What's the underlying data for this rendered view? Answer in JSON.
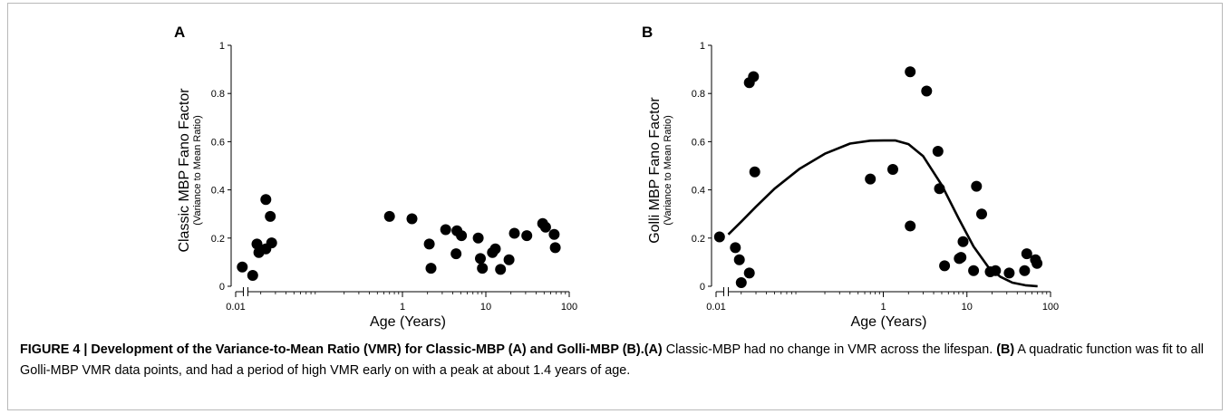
{
  "figure_caption": {
    "label": "FIGURE 4 | Development of the Variance-to-Mean Ratio (VMR) for Classic-MBP (A) and Golli-MBP (B).",
    "a_ref": "(A)",
    "a_text": " Classic-MBP had no change in VMR across the lifespan. ",
    "b_ref": "(B)",
    "b_text": " A quadratic function was fit to all Golli-MBP VMR data points, and had a period of high VMR early on with a peak at about 1.4 years of age."
  },
  "chart_data": [
    {
      "type": "scatter",
      "panel_label": "A",
      "xlabel": "Age (Years)",
      "ylabel": "Classic MBP Fano Factor",
      "ylabel_sub": "(Variance to Mean Ratio)",
      "xscale": "log",
      "xlim": [
        0.01,
        100
      ],
      "ylim": [
        0,
        1
      ],
      "xticks": [
        0.01,
        1,
        10,
        100
      ],
      "xtick_labels": [
        "0.01",
        "1",
        "10",
        "100"
      ],
      "yticks": [
        0,
        0.2,
        0.4,
        0.6,
        0.8,
        1
      ],
      "ytick_labels": [
        "0",
        "0.2",
        "0.4",
        "0.6",
        "0.8",
        "1"
      ],
      "grid": false,
      "points": [
        {
          "x": 0.012,
          "y": 0.08
        },
        {
          "x": 0.016,
          "y": 0.045
        },
        {
          "x": 0.018,
          "y": 0.175
        },
        {
          "x": 0.019,
          "y": 0.14
        },
        {
          "x": 0.023,
          "y": 0.36
        },
        {
          "x": 0.023,
          "y": 0.155
        },
        {
          "x": 0.026,
          "y": 0.29
        },
        {
          "x": 0.027,
          "y": 0.18
        },
        {
          "x": 0.7,
          "y": 0.29
        },
        {
          "x": 1.3,
          "y": 0.28
        },
        {
          "x": 2.1,
          "y": 0.175
        },
        {
          "x": 2.2,
          "y": 0.075
        },
        {
          "x": 3.3,
          "y": 0.235
        },
        {
          "x": 4.5,
          "y": 0.23
        },
        {
          "x": 4.4,
          "y": 0.135
        },
        {
          "x": 5.1,
          "y": 0.21
        },
        {
          "x": 8.1,
          "y": 0.2
        },
        {
          "x": 8.6,
          "y": 0.115
        },
        {
          "x": 9.1,
          "y": 0.075
        },
        {
          "x": 12.0,
          "y": 0.14
        },
        {
          "x": 13.0,
          "y": 0.155
        },
        {
          "x": 15.0,
          "y": 0.07
        },
        {
          "x": 19.0,
          "y": 0.11
        },
        {
          "x": 22.0,
          "y": 0.22
        },
        {
          "x": 31.0,
          "y": 0.21
        },
        {
          "x": 48.0,
          "y": 0.26
        },
        {
          "x": 52.0,
          "y": 0.245
        },
        {
          "x": 66.0,
          "y": 0.215
        },
        {
          "x": 68.0,
          "y": 0.16
        }
      ]
    },
    {
      "type": "scatter",
      "panel_label": "B",
      "xlabel": "Age (Years)",
      "ylabel": "Golli MBP Fano Factor",
      "ylabel_sub": "(Variance to Mean Ratio)",
      "xscale": "log",
      "xlim": [
        0.01,
        100
      ],
      "ylim": [
        0,
        1
      ],
      "xticks": [
        0.01,
        1,
        10,
        100
      ],
      "xtick_labels": [
        "0.01",
        "1",
        "10",
        "100"
      ],
      "yticks": [
        0,
        0.2,
        0.4,
        0.6,
        0.8,
        1
      ],
      "ytick_labels": [
        "0",
        "0.2",
        "0.4",
        "0.6",
        "0.8",
        "1"
      ],
      "grid": false,
      "points": [
        {
          "x": 0.011,
          "y": 0.205
        },
        {
          "x": 0.017,
          "y": 0.16
        },
        {
          "x": 0.019,
          "y": 0.11
        },
        {
          "x": 0.02,
          "y": 0.015
        },
        {
          "x": 0.025,
          "y": 0.055
        },
        {
          "x": 0.025,
          "y": 0.845
        },
        {
          "x": 0.028,
          "y": 0.87
        },
        {
          "x": 0.029,
          "y": 0.475
        },
        {
          "x": 0.7,
          "y": 0.445
        },
        {
          "x": 1.3,
          "y": 0.485
        },
        {
          "x": 2.1,
          "y": 0.89
        },
        {
          "x": 2.1,
          "y": 0.25
        },
        {
          "x": 3.3,
          "y": 0.81
        },
        {
          "x": 4.5,
          "y": 0.56
        },
        {
          "x": 4.7,
          "y": 0.405
        },
        {
          "x": 5.4,
          "y": 0.085
        },
        {
          "x": 8.1,
          "y": 0.115
        },
        {
          "x": 8.5,
          "y": 0.12
        },
        {
          "x": 9.0,
          "y": 0.185
        },
        {
          "x": 12.0,
          "y": 0.065
        },
        {
          "x": 13.0,
          "y": 0.415
        },
        {
          "x": 15.0,
          "y": 0.3
        },
        {
          "x": 19.0,
          "y": 0.06
        },
        {
          "x": 22.0,
          "y": 0.065
        },
        {
          "x": 32.0,
          "y": 0.055
        },
        {
          "x": 49.0,
          "y": 0.065
        },
        {
          "x": 52.0,
          "y": 0.135
        },
        {
          "x": 66.0,
          "y": 0.11
        },
        {
          "x": 69.0,
          "y": 0.095
        }
      ],
      "fit": {
        "type": "quadratic (log age)",
        "peak_age_years": 1.4,
        "peak_value": 0.605,
        "x": [
          0.014,
          0.02,
          0.03,
          0.05,
          0.1,
          0.2,
          0.4,
          0.7,
          1.0,
          1.4,
          2.0,
          3.0,
          5.0,
          8.0,
          12.0,
          18.0,
          25.0,
          35.0,
          50.0,
          70.0
        ],
        "y": [
          0.215,
          0.268,
          0.33,
          0.405,
          0.488,
          0.55,
          0.592,
          0.604,
          0.605,
          0.605,
          0.59,
          0.54,
          0.42,
          0.28,
          0.165,
          0.08,
          0.04,
          0.015,
          0.004,
          0.0
        ]
      }
    }
  ]
}
